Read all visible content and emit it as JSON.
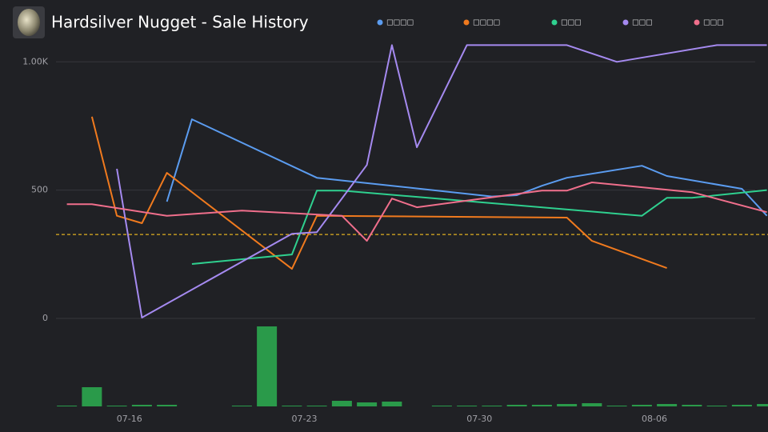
{
  "chart_data": {
    "type": "line",
    "title": "Hardsilver Nugget - Sale History",
    "legend": "top",
    "xlim": [
      "07-13",
      "08-10"
    ],
    "xticks": [
      "07-16",
      "07-23",
      "07-30",
      "08-06"
    ],
    "ylim": [
      0,
      1085
    ],
    "yticks": [
      0,
      500,
      {
        "value": 1000,
        "label": "1.00K"
      }
    ],
    "grid": true,
    "reference_line": 327,
    "reference_color": "#e0b020",
    "series": [
      {
        "name": "□□□□",
        "color": "#5b9cf0",
        "x": [
          "07-17",
          "07-18",
          "07-23",
          "07-30",
          "07-31",
          "08-01",
          "08-02",
          "08-05",
          "08-06",
          "08-09",
          "08-10"
        ],
        "values": [
          455,
          776,
          548,
          475,
          480,
          517,
          548,
          595,
          555,
          505,
          400
        ]
      },
      {
        "name": "□□□□",
        "color": "#f07a1e",
        "x": [
          "07-14",
          "07-15",
          "07-16",
          "07-17",
          "07-22",
          "07-23",
          "08-02",
          "08-03",
          "08-06"
        ],
        "values": [
          786,
          400,
          371,
          567,
          193,
          400,
          393,
          302,
          196
        ]
      },
      {
        "name": "□□□",
        "color": "#2fd08f",
        "x": [
          "07-18",
          "07-22",
          "07-23",
          "07-24",
          "08-05",
          "08-06",
          "08-07",
          "08-10"
        ],
        "values": [
          212,
          249,
          498,
          498,
          400,
          470,
          470,
          500
        ]
      },
      {
        "name": "□□□",
        "color": "#a58af0",
        "x": [
          "07-15",
          "07-16",
          "07-22",
          "07-23",
          "07-25",
          "07-26",
          "07-27",
          "07-29",
          "08-02",
          "08-04",
          "08-08",
          "08-10"
        ],
        "values": [
          583,
          3,
          330,
          336,
          598,
          1065,
          667,
          1065,
          1065,
          1000,
          1065,
          1065
        ]
      },
      {
        "name": "□□□",
        "color": "#f06f8c",
        "x": [
          "07-13",
          "07-14",
          "07-17",
          "07-20",
          "07-24",
          "07-25",
          "07-26",
          "07-27",
          "08-01",
          "08-02",
          "08-03",
          "08-07",
          "08-10"
        ],
        "values": [
          445,
          445,
          400,
          420,
          400,
          302,
          467,
          433,
          498,
          498,
          530,
          492,
          414
        ]
      }
    ],
    "volume": {
      "color": "#2a9a4a",
      "ylim": [
        0,
        50
      ],
      "x": [
        "07-13",
        "07-14",
        "07-15",
        "07-16",
        "07-17",
        "07-20",
        "07-21",
        "07-22",
        "07-23",
        "07-24",
        "07-25",
        "07-26",
        "07-28",
        "07-29",
        "07-30",
        "07-31",
        "08-01",
        "08-02",
        "08-03",
        "08-04",
        "08-05",
        "08-06",
        "08-07",
        "08-08",
        "08-09",
        "08-10"
      ],
      "values": [
        0.5,
        12,
        0.5,
        1,
        1,
        0.5,
        50,
        0.5,
        0.5,
        3.5,
        2.5,
        3,
        0.5,
        0.5,
        0.5,
        1,
        1,
        1.5,
        2,
        0.5,
        1,
        1.5,
        1,
        0.5,
        1,
        1.5
      ]
    }
  }
}
